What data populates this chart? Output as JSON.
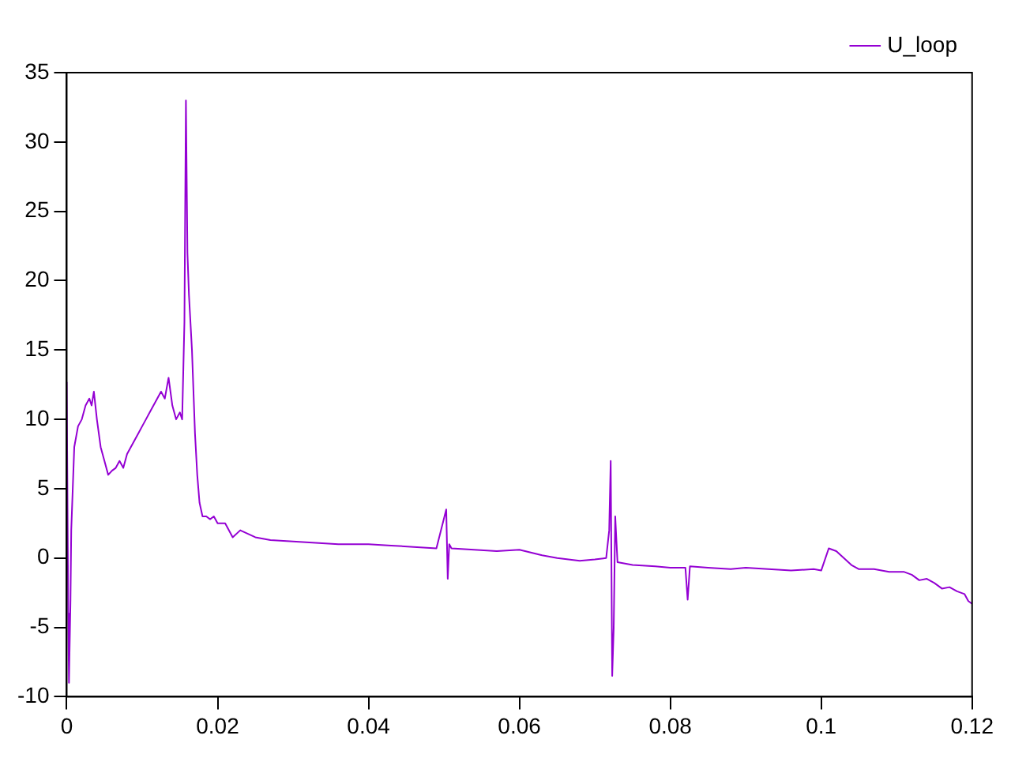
{
  "chart_data": {
    "type": "line",
    "xlim": [
      0,
      0.12
    ],
    "xticks": [
      0,
      0.02,
      0.04,
      0.06,
      0.08,
      0.1,
      0.12
    ],
    "ylim": [
      -10,
      35
    ],
    "yticks": [
      -10,
      -5,
      0,
      5,
      10,
      15,
      20,
      25,
      30,
      35
    ],
    "grid": false,
    "legend": "top right",
    "marker": "none",
    "line_style": "solid",
    "series": [
      {
        "name": "U_loop",
        "color": "#9400d3",
        "x": [
          0,
          0.0002,
          0.0003,
          0.0005,
          0.0006,
          0.0008,
          0.001,
          0.0015,
          0.002,
          0.0025,
          0.003,
          0.0033,
          0.0036,
          0.004,
          0.0045,
          0.005,
          0.0055,
          0.006,
          0.0065,
          0.007,
          0.0075,
          0.008,
          0.0085,
          0.009,
          0.0095,
          0.01,
          0.0105,
          0.011,
          0.0115,
          0.012,
          0.0125,
          0.013,
          0.0135,
          0.014,
          0.0145,
          0.015,
          0.0153,
          0.0156,
          0.0158,
          0.016,
          0.0162,
          0.0164,
          0.0166,
          0.0168,
          0.017,
          0.0173,
          0.0176,
          0.018,
          0.0185,
          0.019,
          0.0195,
          0.02,
          0.021,
          0.022,
          0.023,
          0.025,
          0.027,
          0.03,
          0.033,
          0.036,
          0.04,
          0.043,
          0.046,
          0.049,
          0.0503,
          0.0505,
          0.0507,
          0.051,
          0.054,
          0.057,
          0.06,
          0.063,
          0.065,
          0.068,
          0.07,
          0.0715,
          0.0719,
          0.0721,
          0.0723,
          0.0725,
          0.0727,
          0.073,
          0.075,
          0.078,
          0.08,
          0.082,
          0.0823,
          0.0826,
          0.085,
          0.088,
          0.09,
          0.093,
          0.096,
          0.099,
          0.1,
          0.101,
          0.102,
          0.103,
          0.104,
          0.105,
          0.107,
          0.109,
          0.111,
          0.112,
          0.113,
          0.114,
          0.115,
          0.116,
          0.117,
          0.118,
          0.119,
          0.1195,
          0.12
        ],
        "values": [
          12.7,
          -4,
          -9,
          -3,
          2,
          5,
          8,
          9.5,
          10,
          11,
          11.5,
          11,
          12,
          10,
          8,
          7,
          6,
          6.3,
          6.5,
          7,
          6.5,
          7.5,
          8,
          8.5,
          9,
          9.5,
          10,
          10.5,
          11,
          11.5,
          12,
          11.5,
          13,
          11,
          10,
          10.5,
          10,
          17,
          33,
          22,
          19,
          17,
          15,
          12,
          9,
          6,
          4,
          3,
          3,
          2.8,
          3,
          2.5,
          2.5,
          1.5,
          2,
          1.5,
          1.3,
          1.2,
          1.1,
          1,
          1,
          0.9,
          0.8,
          0.7,
          3.5,
          -1.5,
          1,
          0.7,
          0.6,
          0.5,
          0.6,
          0.2,
          0,
          -0.2,
          -0.1,
          0,
          2,
          7,
          -8.5,
          -5,
          3,
          -0.3,
          -0.5,
          -0.6,
          -0.7,
          -0.7,
          -3,
          -0.6,
          -0.7,
          -0.8,
          -0.7,
          -0.8,
          -0.9,
          -0.8,
          -0.9,
          0.7,
          0.5,
          0,
          -0.5,
          -0.8,
          -0.8,
          -1,
          -1,
          -1.2,
          -1.6,
          -1.5,
          -1.8,
          -2.2,
          -2.1,
          -2.4,
          -2.6,
          -3.1,
          -3.3
        ]
      }
    ]
  }
}
